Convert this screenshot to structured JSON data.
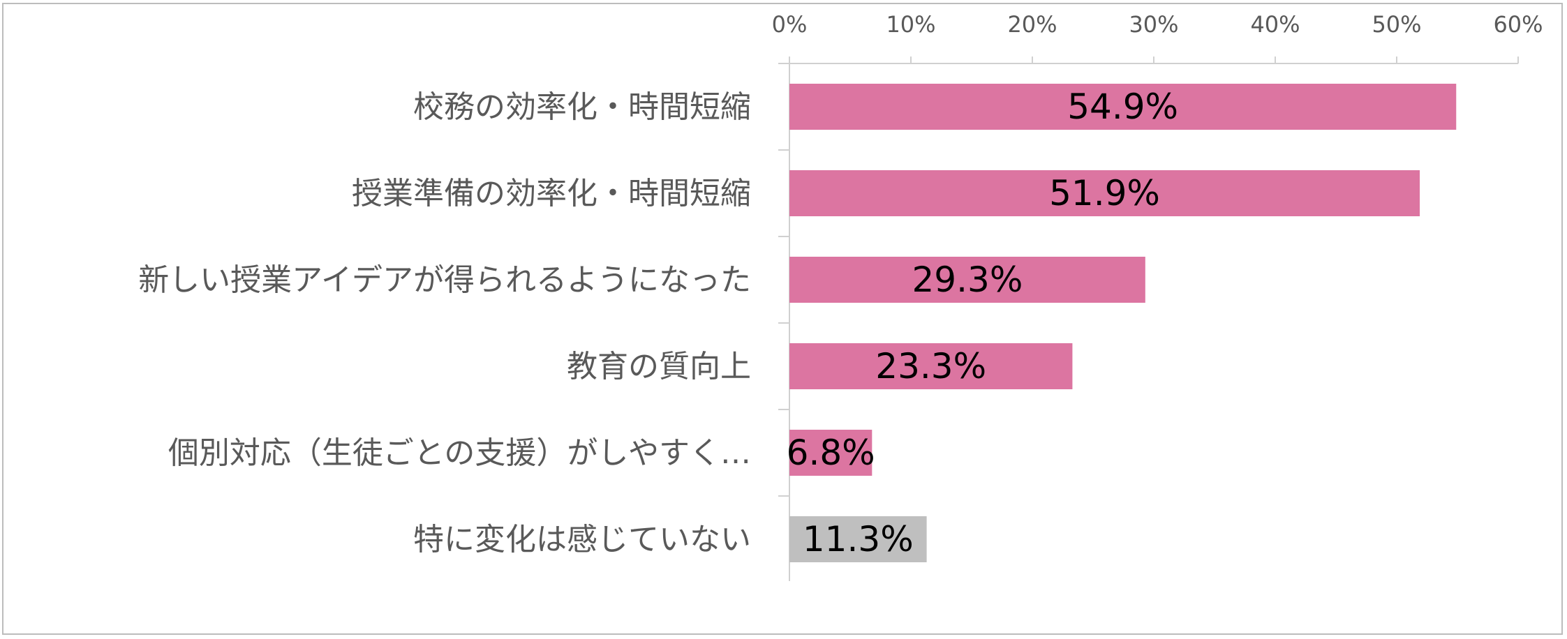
{
  "chart_data": {
    "type": "bar",
    "orientation": "horizontal",
    "categories": [
      "校務の効率化・時間短縮",
      "授業準備の効率化・時間短縮",
      "新しい授業アイデアが得られるようになった",
      "教育の質向上",
      "個別対応（生徒ごとの支援）がしやすく…",
      "特に変化は感じていない"
    ],
    "values": [
      54.9,
      51.9,
      29.3,
      23.3,
      6.8,
      11.3
    ],
    "data_labels": [
      "54.9%",
      "51.9%",
      "29.3%",
      "23.3%",
      "6.8%",
      "11.3%"
    ],
    "bar_colors": [
      "#dc75a1",
      "#dc75a1",
      "#dc75a1",
      "#dc75a1",
      "#dc75a1",
      "#bfbfbf"
    ],
    "x_ticks": [
      "0%",
      "10%",
      "20%",
      "30%",
      "40%",
      "50%",
      "60%"
    ],
    "xlim": [
      0,
      60
    ],
    "x_axis_position": "top",
    "grid": false,
    "legend": "none"
  }
}
